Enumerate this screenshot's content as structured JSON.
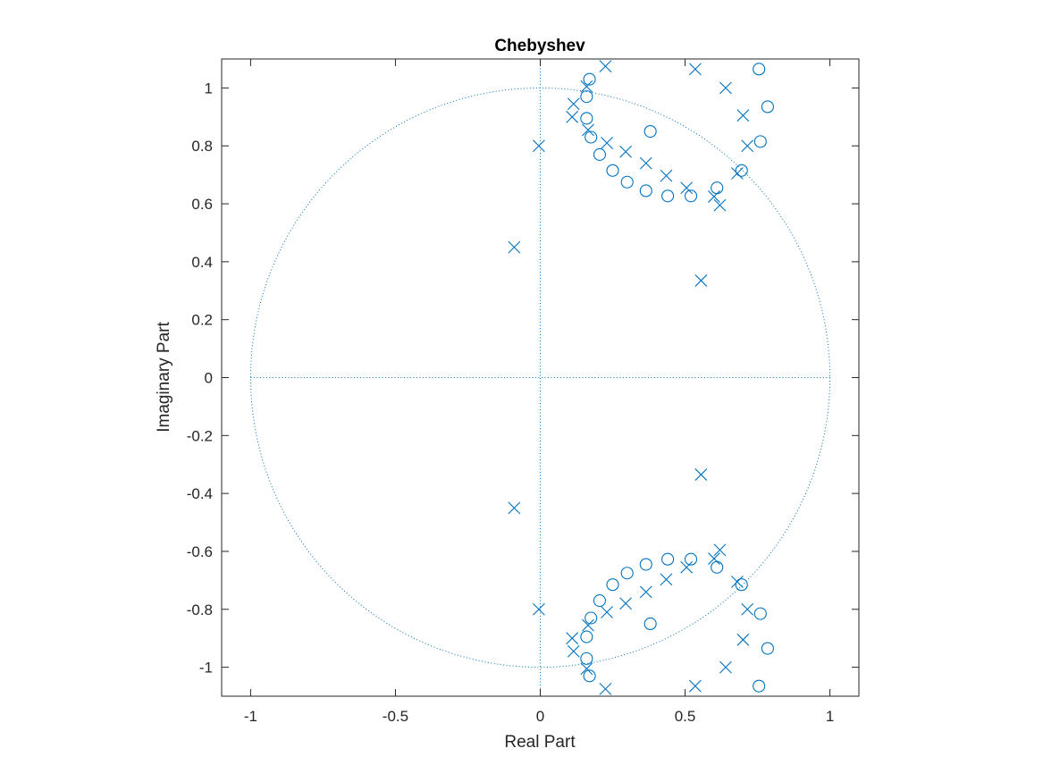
{
  "chart_data": {
    "type": "scatter",
    "title": "Chebyshev",
    "xlabel": "Real Part",
    "ylabel": "Imaginary Part",
    "xlim": [
      -1.1,
      1.1
    ],
    "ylim": [
      -1.1,
      1.1
    ],
    "x_ticks": [
      -1,
      -0.5,
      0,
      0.5,
      1
    ],
    "x_tick_labels": [
      "-1",
      "-0.5",
      "0",
      "0.5",
      "1"
    ],
    "y_ticks": [
      -1,
      -0.8,
      -0.6,
      -0.4,
      -0.2,
      0,
      0.2,
      0.4,
      0.6,
      0.8,
      1
    ],
    "y_tick_labels": [
      "-1",
      "-0.8",
      "-0.6",
      "-0.4",
      "-0.2",
      "0",
      "0.2",
      "0.4",
      "0.6",
      "0.8",
      "1"
    ],
    "grid": false,
    "unit_circle": true,
    "reference_axes": true,
    "color": "#0072BD",
    "series": [
      {
        "marker": "circle",
        "points": [
          [
            0.17,
            1.03
          ],
          [
            0.16,
            0.97
          ],
          [
            0.16,
            0.895
          ],
          [
            0.175,
            0.83
          ],
          [
            0.205,
            0.77
          ],
          [
            0.25,
            0.715
          ],
          [
            0.3,
            0.675
          ],
          [
            0.365,
            0.645
          ],
          [
            0.44,
            0.627
          ],
          [
            0.52,
            0.627
          ],
          [
            0.61,
            0.655
          ],
          [
            0.695,
            0.715
          ],
          [
            0.76,
            0.815
          ],
          [
            0.785,
            0.935
          ],
          [
            0.755,
            1.065
          ],
          [
            0.38,
            0.85
          ],
          [
            0.17,
            -1.03
          ],
          [
            0.16,
            -0.97
          ],
          [
            0.16,
            -0.895
          ],
          [
            0.175,
            -0.83
          ],
          [
            0.205,
            -0.77
          ],
          [
            0.25,
            -0.715
          ],
          [
            0.3,
            -0.675
          ],
          [
            0.365,
            -0.645
          ],
          [
            0.44,
            -0.627
          ],
          [
            0.52,
            -0.627
          ],
          [
            0.61,
            -0.655
          ],
          [
            0.695,
            -0.715
          ],
          [
            0.76,
            -0.815
          ],
          [
            0.785,
            -0.935
          ],
          [
            0.755,
            -1.065
          ],
          [
            0.38,
            -0.85
          ]
        ]
      },
      {
        "marker": "x",
        "points": [
          [
            0.225,
            1.075
          ],
          [
            0.16,
            1.005
          ],
          [
            0.115,
            0.945
          ],
          [
            0.11,
            0.9
          ],
          [
            0.165,
            0.855
          ],
          [
            0.23,
            0.81
          ],
          [
            0.295,
            0.78
          ],
          [
            0.365,
            0.74
          ],
          [
            0.435,
            0.697
          ],
          [
            0.505,
            0.655
          ],
          [
            0.6,
            0.625
          ],
          [
            0.62,
            0.595
          ],
          [
            0.68,
            0.705
          ],
          [
            0.715,
            0.8
          ],
          [
            0.7,
            0.905
          ],
          [
            0.64,
            1.0
          ],
          [
            0.535,
            1.065
          ],
          [
            0.555,
            0.335
          ],
          [
            -0.09,
            0.45
          ],
          [
            -0.005,
            0.8
          ],
          [
            0.225,
            -1.075
          ],
          [
            0.16,
            -1.005
          ],
          [
            0.115,
            -0.945
          ],
          [
            0.11,
            -0.9
          ],
          [
            0.165,
            -0.855
          ],
          [
            0.23,
            -0.81
          ],
          [
            0.295,
            -0.78
          ],
          [
            0.365,
            -0.74
          ],
          [
            0.435,
            -0.697
          ],
          [
            0.505,
            -0.655
          ],
          [
            0.6,
            -0.625
          ],
          [
            0.62,
            -0.595
          ],
          [
            0.68,
            -0.705
          ],
          [
            0.715,
            -0.8
          ],
          [
            0.7,
            -0.905
          ],
          [
            0.64,
            -1.0
          ],
          [
            0.535,
            -1.065
          ],
          [
            0.555,
            -0.335
          ],
          [
            -0.09,
            -0.45
          ],
          [
            -0.005,
            -0.8
          ]
        ]
      }
    ]
  }
}
